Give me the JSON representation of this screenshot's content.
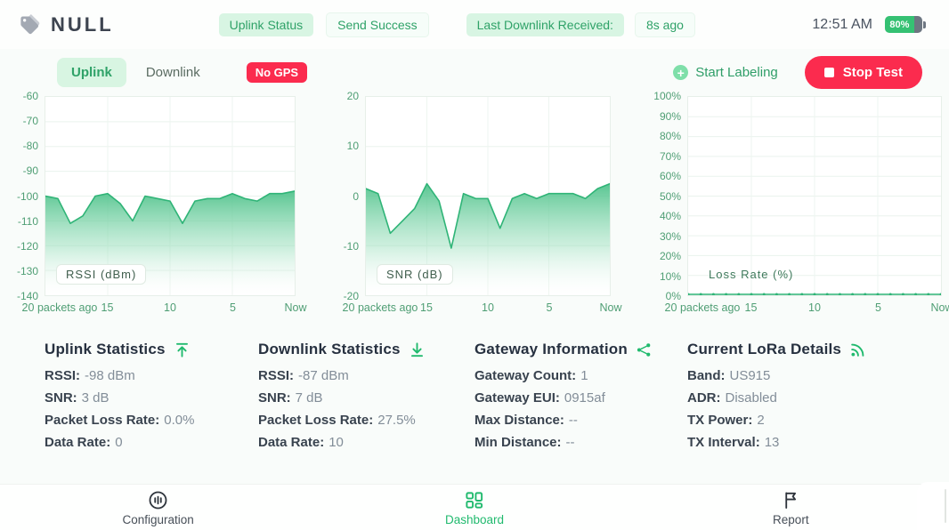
{
  "header": {
    "logo_text": "NULL",
    "uplink_status": {
      "label": "Uplink Status",
      "value": "Send Success"
    },
    "last_downlink": {
      "label": "Last Downlink Received:",
      "value": "8s ago"
    },
    "clock": "12:51 AM",
    "battery_level": "80%"
  },
  "toolbar": {
    "tabs": [
      {
        "label": "Uplink",
        "active": true
      },
      {
        "label": "Downlink",
        "active": false
      }
    ],
    "gps_badge": "No GPS",
    "plus_glyph": "+",
    "start_labeling_label": "Start Labeling",
    "stop_test_label": "Stop Test"
  },
  "chart_data": [
    {
      "type": "area",
      "title": "RSSI (dBm)",
      "ylabel": "RSSI (dBm)",
      "xlabel": "packets",
      "x_ticks": [
        "20 packets ago",
        "15",
        "10",
        "5",
        "Now"
      ],
      "yticks": [
        "-60",
        "-70",
        "-80",
        "-90",
        "-100",
        "-110",
        "-120",
        "-130",
        "-140"
      ],
      "ylim": [
        -140,
        -60
      ],
      "grid": true,
      "markers": false,
      "values": [
        -100,
        -101,
        -111,
        -108,
        -100,
        -99,
        -103,
        -110,
        -100,
        -101,
        -102,
        -111,
        -102,
        -101,
        -101,
        -99,
        -101,
        -102,
        -99,
        -99,
        -98
      ]
    },
    {
      "type": "area",
      "title": "SNR (dB)",
      "ylabel": "SNR (dB)",
      "xlabel": "packets",
      "x_ticks": [
        "20 packets ago",
        "15",
        "10",
        "5",
        "Now"
      ],
      "yticks": [
        "20",
        "10",
        "0",
        "-10",
        "-20"
      ],
      "ylim": [
        -20,
        20
      ],
      "grid": true,
      "markers": false,
      "values": [
        1.5,
        0.5,
        -7.5,
        -5,
        -2.5,
        2.5,
        -1,
        -10.5,
        0.5,
        -0.5,
        -0.5,
        -6.5,
        -0.5,
        0.5,
        -0.5,
        0.5,
        0.5,
        0.5,
        -0.5,
        1.5,
        2.5
      ]
    },
    {
      "type": "line",
      "title": "Loss Rate (%)",
      "ylabel": "Loss Rate (%)",
      "xlabel": "packets",
      "x_ticks": [
        "20 packets ago",
        "15",
        "10",
        "5",
        "Now"
      ],
      "yticks": [
        "100%",
        "90%",
        "80%",
        "70%",
        "60%",
        "50%",
        "40%",
        "30%",
        "20%",
        "10%",
        "0%"
      ],
      "ylim": [
        0,
        100
      ],
      "grid": true,
      "markers": true,
      "values": [
        0,
        0,
        0,
        0,
        0,
        0,
        0,
        0,
        0,
        0,
        0,
        0,
        0,
        0,
        0,
        0,
        0,
        0,
        0,
        0,
        0
      ]
    }
  ],
  "stats": [
    {
      "title": "Uplink Statistics",
      "icon": "upload-icon",
      "rows": [
        {
          "label": "RSSI:",
          "value": "-98 dBm"
        },
        {
          "label": "SNR:",
          "value": "3 dB"
        },
        {
          "label": "Packet Loss Rate:",
          "value": "0.0%"
        },
        {
          "label": "Data Rate:",
          "value": "0"
        }
      ]
    },
    {
      "title": "Downlink Statistics",
      "icon": "download-icon",
      "rows": [
        {
          "label": "RSSI:",
          "value": "-87 dBm"
        },
        {
          "label": "SNR:",
          "value": "7 dB"
        },
        {
          "label": "Packet Loss Rate:",
          "value": "27.5%"
        },
        {
          "label": "Data Rate:",
          "value": "10"
        }
      ]
    },
    {
      "title": "Gateway Information",
      "icon": "share-network-icon",
      "rows": [
        {
          "label": "Gateway Count:",
          "value": "1"
        },
        {
          "label": "Gateway EUI:",
          "value": "0915af"
        },
        {
          "label": "Max Distance:",
          "value": "--"
        },
        {
          "label": "Min Distance:",
          "value": "--"
        }
      ]
    },
    {
      "title": "Current LoRa Details",
      "icon": "signal-icon",
      "rows": [
        {
          "label": "Band:",
          "value": "US915"
        },
        {
          "label": "ADR:",
          "value": "Disabled"
        },
        {
          "label": "TX Power:",
          "value": "2"
        },
        {
          "label": "TX Interval:",
          "value": "13"
        }
      ]
    }
  ],
  "nav": {
    "items": [
      {
        "label": "Configuration",
        "icon": "sliders-icon",
        "active": false
      },
      {
        "label": "Dashboard",
        "icon": "grid-icon",
        "active": true
      },
      {
        "label": "Report",
        "icon": "flag-icon",
        "active": false
      }
    ]
  },
  "colors": {
    "accent_green": "#21ba6e",
    "light_green_badge": "#d8f5e3",
    "green_text": "#2fa268",
    "danger_red": "#fb2b4e",
    "chart_line": "#2fb477",
    "chart_fill_top": "#4cc189",
    "axis_text": "#4f9e74",
    "battery_green": "#35c173"
  }
}
